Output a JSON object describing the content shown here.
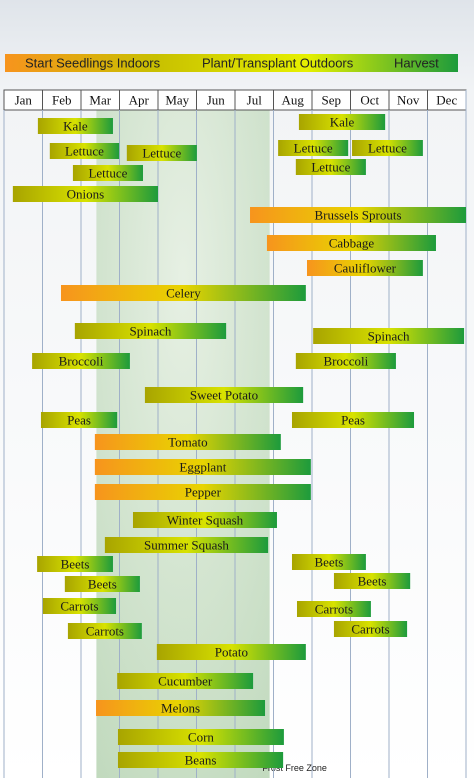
{
  "chart_data": {
    "type": "gantt",
    "legend": [
      "Start Seedlings Indoors",
      "Plant/Transplant Outdoors",
      "Harvest"
    ],
    "legend_colors": [
      "#f7941d",
      "#c8c000",
      "#e6f000",
      "#1d9b3c"
    ],
    "categories": [
      "Jan",
      "Feb",
      "Mar",
      "Apr",
      "May",
      "Jun",
      "Jul",
      "Aug",
      "Sep",
      "Oct",
      "Nov",
      "Dec"
    ],
    "xlim": [
      0,
      12
    ],
    "gradients": {
      "indoor": [
        "#f7941d",
        "#e8d400",
        "#1d9b3c"
      ],
      "outdoor": [
        "#a8a400",
        "#d8e200",
        "#1d9b3c"
      ]
    },
    "frost_free_zone": {
      "label": "Frost Free Zone",
      "range": [
        2.4,
        6.9
      ]
    },
    "tasks": [
      {
        "name": "Kale",
        "start": 0.88,
        "end": 2.83,
        "gradient": "outdoor"
      },
      {
        "name": "Kale",
        "start": 7.66,
        "end": 9.9,
        "gradient": "outdoor"
      },
      {
        "name": "Lettuce",
        "start": 1.19,
        "end": 2.99,
        "gradient": "outdoor"
      },
      {
        "name": "Lettuce",
        "start": 3.19,
        "end": 5.01,
        "gradient": "outdoor"
      },
      {
        "name": "Lettuce",
        "start": 1.79,
        "end": 3.61,
        "gradient": "outdoor"
      },
      {
        "name": "Lettuce",
        "start": 7.12,
        "end": 8.94,
        "gradient": "outdoor"
      },
      {
        "name": "Lettuce",
        "start": 9.04,
        "end": 10.88,
        "gradient": "outdoor"
      },
      {
        "name": "Lettuce",
        "start": 7.58,
        "end": 9.4,
        "gradient": "outdoor"
      },
      {
        "name": "Onions",
        "start": 0.23,
        "end": 4.0,
        "gradient": "outdoor"
      },
      {
        "name": "Brussels Sprouts",
        "start": 6.39,
        "end": 12,
        "gradient": "indoor"
      },
      {
        "name": "Cabbage",
        "start": 6.83,
        "end": 11.22,
        "gradient": "indoor"
      },
      {
        "name": "Cauliflower",
        "start": 7.87,
        "end": 10.88,
        "gradient": "indoor"
      },
      {
        "name": "Celery",
        "start": 1.48,
        "end": 7.84,
        "gradient": "indoor"
      },
      {
        "name": "Spinach",
        "start": 1.84,
        "end": 5.77,
        "gradient": "outdoor"
      },
      {
        "name": "Spinach",
        "start": 8.03,
        "end": 11.95,
        "gradient": "outdoor"
      },
      {
        "name": "Broccoli",
        "start": 0.73,
        "end": 3.27,
        "gradient": "outdoor"
      },
      {
        "name": "Broccoli",
        "start": 7.58,
        "end": 10.18,
        "gradient": "outdoor"
      },
      {
        "name": "Sweet Potato",
        "start": 3.66,
        "end": 7.77,
        "gradient": "outdoor"
      },
      {
        "name": "Peas",
        "start": 0.96,
        "end": 2.94,
        "gradient": "outdoor"
      },
      {
        "name": "Peas",
        "start": 7.48,
        "end": 10.65,
        "gradient": "outdoor"
      },
      {
        "name": "Tomato",
        "start": 2.36,
        "end": 7.19,
        "gradient": "indoor"
      },
      {
        "name": "Eggplant",
        "start": 2.36,
        "end": 7.97,
        "gradient": "indoor"
      },
      {
        "name": "Pepper",
        "start": 2.36,
        "end": 7.97,
        "gradient": "indoor"
      },
      {
        "name": "Winter Squash",
        "start": 3.35,
        "end": 7.09,
        "gradient": "outdoor"
      },
      {
        "name": "Summer Squash",
        "start": 2.62,
        "end": 6.86,
        "gradient": "outdoor"
      },
      {
        "name": "Beets",
        "start": 0.86,
        "end": 2.83,
        "gradient": "outdoor"
      },
      {
        "name": "Beets",
        "start": 1.58,
        "end": 3.53,
        "gradient": "outdoor"
      },
      {
        "name": "Carrots",
        "start": 1.01,
        "end": 2.91,
        "gradient": "outdoor"
      },
      {
        "name": "Carrots",
        "start": 1.66,
        "end": 3.58,
        "gradient": "outdoor"
      },
      {
        "name": "Beets",
        "start": 7.48,
        "end": 9.4,
        "gradient": "outdoor"
      },
      {
        "name": "Beets",
        "start": 8.57,
        "end": 10.55,
        "gradient": "outdoor"
      },
      {
        "name": "Carrots",
        "start": 7.61,
        "end": 9.53,
        "gradient": "outdoor"
      },
      {
        "name": "Carrots",
        "start": 8.57,
        "end": 10.47,
        "gradient": "outdoor"
      },
      {
        "name": "Potato",
        "start": 3.97,
        "end": 7.84,
        "gradient": "outdoor"
      },
      {
        "name": "Cucumber",
        "start": 2.94,
        "end": 6.47,
        "gradient": "outdoor"
      },
      {
        "name": "Melons",
        "start": 2.39,
        "end": 6.78,
        "gradient": "indoor"
      },
      {
        "name": "Corn",
        "start": 2.96,
        "end": 7.27,
        "gradient": "outdoor"
      },
      {
        "name": "Beans",
        "start": 2.96,
        "end": 7.25,
        "gradient": "outdoor"
      }
    ]
  }
}
